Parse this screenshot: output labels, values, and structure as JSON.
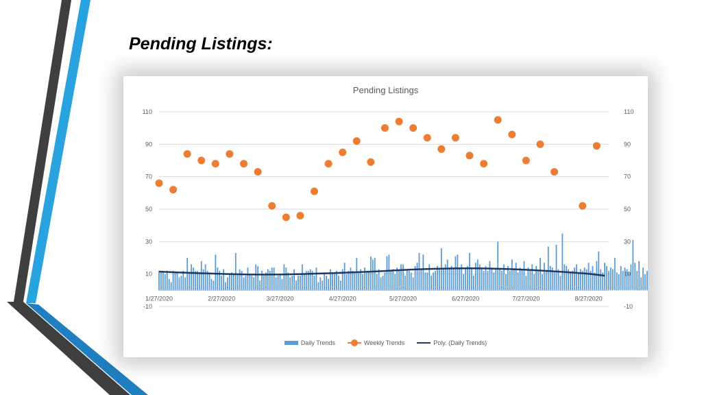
{
  "slide": {
    "title": "Pending Listings:",
    "colors": {
      "accent_blue": "#29a3e0",
      "dark_gray": "#3f3f3f"
    }
  },
  "chart_data": {
    "type": "bar",
    "title": "Pending Listings",
    "x_ticks": [
      "1/27/2020",
      "2/27/2020",
      "3/27/2020",
      "4/27/2020",
      "5/27/2020",
      "6/27/2020",
      "7/27/2020",
      "8/27/2020"
    ],
    "x_range": [
      "1/27/2020",
      "9/6/2020"
    ],
    "y_ticks": [
      110,
      90,
      70,
      50,
      30,
      10,
      -10
    ],
    "ylim": [
      -10,
      110
    ],
    "y2_ticks": [
      110,
      90,
      70,
      50,
      30,
      10,
      -10
    ],
    "y2lim": [
      -10,
      110
    ],
    "grid": true,
    "legend_position": "bottom",
    "series": [
      {
        "name": "Daily Trends",
        "type": "bar",
        "color": "#5b9bd5",
        "x_start": "1/27/2020",
        "values": [
          12,
          11,
          11,
          10,
          12,
          7,
          5,
          12,
          11,
          11,
          8,
          9,
          12,
          8,
          20,
          11,
          16,
          14,
          12,
          12,
          11,
          18,
          13,
          16,
          12,
          11,
          7,
          6,
          22,
          14,
          12,
          9,
          13,
          5,
          8,
          10,
          11,
          10,
          23,
          10,
          13,
          12,
          8,
          9,
          14,
          10,
          9,
          8,
          16,
          15,
          6,
          12,
          9,
          11,
          13,
          12,
          14,
          14,
          8,
          9,
          10,
          7,
          16,
          14,
          11,
          8,
          9,
          13,
          6,
          9,
          9,
          16,
          10,
          12,
          12,
          13,
          12,
          9,
          14,
          5,
          8,
          6,
          11,
          9,
          7,
          13,
          11,
          10,
          12,
          9,
          6,
          13,
          17,
          10,
          12,
          14,
          12,
          11,
          20,
          11,
          13,
          10,
          14,
          12,
          11,
          21,
          19,
          20,
          10,
          13,
          8,
          9,
          11,
          21,
          22,
          12,
          13,
          10,
          14,
          12,
          16,
          16,
          9,
          13,
          12,
          11,
          8,
          15,
          17,
          23,
          13,
          22,
          11,
          11,
          16,
          9,
          11,
          12,
          15,
          13,
          26,
          13,
          16,
          19,
          14,
          15,
          13,
          21,
          22,
          14,
          16,
          10,
          13,
          15,
          23,
          13,
          9,
          17,
          19,
          16,
          14,
          12,
          15,
          12,
          18,
          13,
          11,
          13,
          30,
          13,
          12,
          16,
          10,
          15,
          12,
          19,
          13,
          17,
          11,
          14,
          13,
          18,
          9,
          14,
          13,
          16,
          10,
          15,
          12,
          20,
          10,
          17,
          12,
          27,
          15,
          14,
          12,
          28,
          13,
          9,
          35,
          16,
          15,
          13,
          11,
          12,
          14,
          16,
          11,
          13,
          12,
          14,
          13,
          17,
          12,
          15,
          11,
          18,
          24,
          13,
          11,
          17,
          15,
          12,
          14,
          13,
          20,
          11,
          10,
          15,
          12,
          14,
          13,
          11,
          16,
          31,
          17,
          12,
          18,
          8,
          14,
          10,
          12,
          9,
          13,
          11,
          16,
          10,
          15,
          9,
          14,
          22,
          8,
          5,
          6
        ]
      },
      {
        "name": "Weekly Trends",
        "type": "scatter",
        "color": "#ed7d31",
        "x": [
          "1/27/2020",
          "2/3/2020",
          "2/10/2020",
          "2/17/2020",
          "2/24/2020",
          "3/2/2020",
          "3/9/2020",
          "3/16/2020",
          "3/23/2020",
          "3/30/2020",
          "4/6/2020",
          "4/13/2020",
          "4/20/2020",
          "4/27/2020",
          "5/4/2020",
          "5/11/2020",
          "5/18/2020",
          "5/25/2020",
          "6/1/2020",
          "6/8/2020",
          "6/15/2020",
          "6/22/2020",
          "6/29/2020",
          "7/6/2020",
          "7/13/2020",
          "7/20/2020",
          "7/27/2020",
          "8/3/2020",
          "8/10/2020",
          "8/17/2020",
          "8/24/2020",
          "8/31/2020"
        ],
        "values": [
          66,
          62,
          84,
          80,
          78,
          84,
          78,
          73,
          52,
          45,
          46,
          61,
          78,
          85,
          92,
          79,
          100,
          104,
          100,
          94,
          87,
          94,
          83,
          78,
          105,
          96,
          80,
          90,
          73,
          null,
          52,
          89
        ]
      },
      {
        "name": "Poly. (Daily Trends)",
        "type": "line",
        "color": "#1f3864",
        "x": [
          "1/27/2020",
          "2/17/2020",
          "3/9/2020",
          "3/30/2020",
          "4/20/2020",
          "5/11/2020",
          "6/1/2020",
          "6/22/2020",
          "7/13/2020",
          "8/3/2020",
          "8/24/2020",
          "9/4/2020"
        ],
        "values": [
          11.5,
          10.5,
          9.8,
          9.8,
          10.5,
          11.5,
          12.8,
          13.5,
          13.3,
          12.2,
          10.5,
          9
        ]
      }
    ]
  }
}
